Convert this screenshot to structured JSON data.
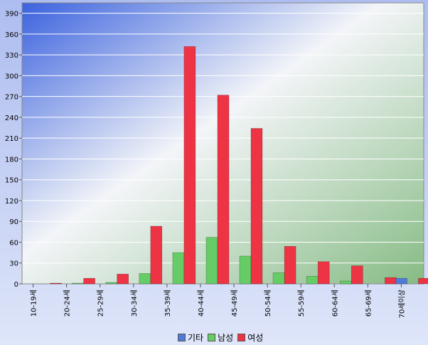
{
  "chart_data": {
    "type": "bar",
    "categories": [
      "10-19세",
      "20-24세",
      "25-29세",
      "30-34세",
      "35-39세",
      "40-44세",
      "45-49세",
      "50-54세",
      "55-59세",
      "60-64세",
      "65-69세",
      "70세이상"
    ],
    "series": [
      {
        "name": "기타",
        "color": "#4f7bd6",
        "values": [
          0,
          0,
          0,
          0,
          0,
          0,
          0,
          0,
          0,
          0,
          0,
          8
        ]
      },
      {
        "name": "남성",
        "color": "#66cc66",
        "values": [
          0,
          1,
          2,
          15,
          45,
          67,
          40,
          16,
          11,
          4,
          0,
          0
        ]
      },
      {
        "name": "여성",
        "color": "#ee3344",
        "values": [
          1,
          8,
          14,
          83,
          342,
          272,
          224,
          54,
          32,
          26,
          9,
          8
        ]
      }
    ],
    "ylim": [
      0,
      405
    ],
    "yticks": [
      0,
      30,
      60,
      90,
      120,
      150,
      180,
      210,
      240,
      270,
      300,
      330,
      360,
      390
    ],
    "grid": true,
    "legend_position": "bottom"
  }
}
